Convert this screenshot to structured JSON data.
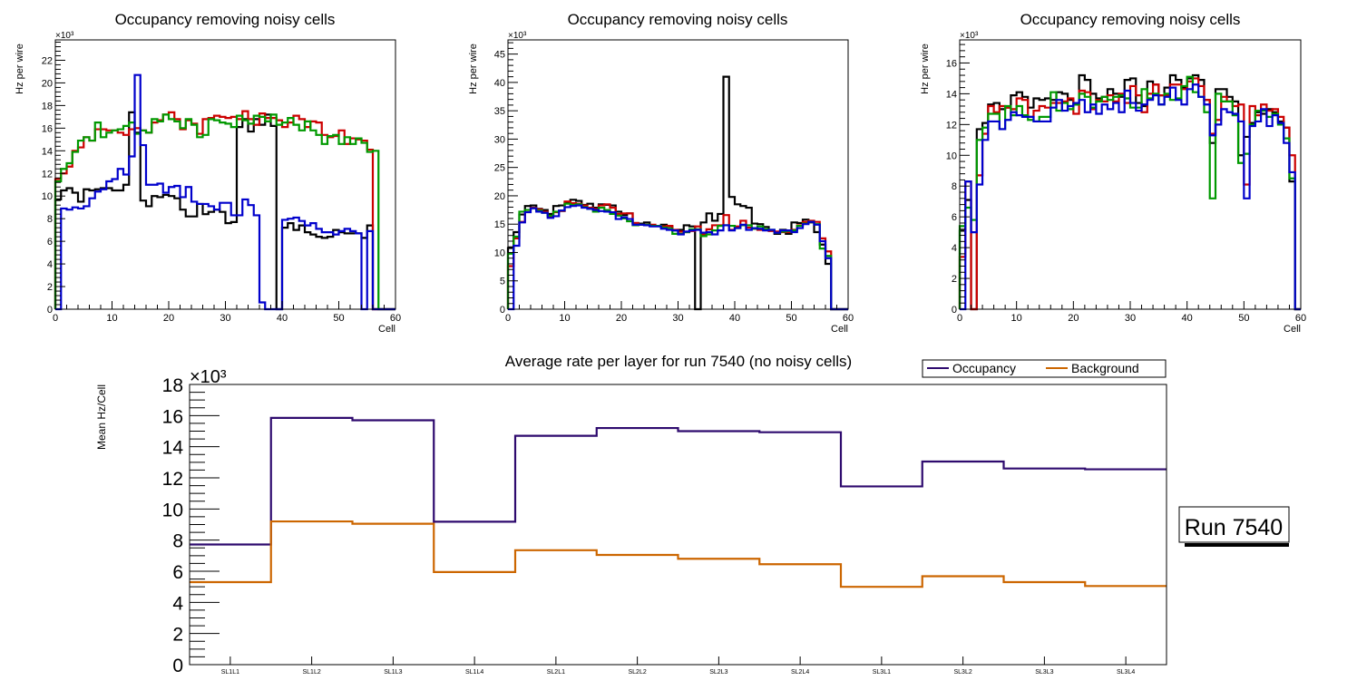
{
  "chart_data": [
    {
      "type": "line",
      "subtype": "step-histogram",
      "title": "Occupancy removing noisy cells",
      "xlabel": "Cell",
      "ylabel": "Hz per wire",
      "y_multiplier_label": "×10³",
      "xlim": [
        0,
        60
      ],
      "ylim": [
        0,
        23.8
      ],
      "x_ticks": [
        0,
        10,
        20,
        30,
        40,
        50,
        60
      ],
      "y_ticks": [
        0,
        2,
        4,
        6,
        8,
        10,
        12,
        14,
        16,
        18,
        20,
        22
      ],
      "grid": false,
      "series": [
        {
          "name": "layer-black",
          "color": "#000000",
          "values": [
            9.7,
            10.5,
            10.7,
            10.3,
            9.5,
            10.6,
            10.5,
            10.6,
            10.7,
            10.7,
            10.5,
            10.5,
            11.0,
            17.4,
            15.6,
            9.6,
            9.1,
            10.0,
            9.9,
            10.1,
            10.0,
            9.8,
            8.8,
            8.2,
            8.2,
            9.3,
            8.4,
            8.6,
            8.8,
            8.6,
            7.6,
            7.7,
            16.1,
            16.8,
            15.7,
            16.8,
            16.3,
            17.2,
            16.2,
            0,
            7.2,
            7.6,
            7.0,
            7.4,
            6.8,
            6.6,
            6.4,
            6.3,
            6.4,
            7.0,
            6.8,
            6.7,
            6.7,
            6.7,
            6.3,
            7.4,
            0,
            0,
            0,
            0
          ]
        },
        {
          "name": "layer-red",
          "color": "#cc0000",
          "values": [
            11.5,
            12.0,
            12.6,
            14.0,
            14.3,
            15.2,
            14.9,
            15.9,
            15.9,
            15.8,
            15.8,
            15.6,
            15.4,
            15.9,
            16.0,
            15.8,
            15.6,
            16.5,
            16.7,
            17.2,
            17.4,
            16.8,
            15.9,
            16.7,
            16.4,
            15.5,
            16.8,
            16.9,
            17.1,
            17.0,
            16.9,
            17.0,
            16.8,
            17.5,
            16.8,
            16.3,
            17.3,
            16.9,
            16.9,
            16.7,
            16.1,
            16.5,
            17.1,
            16.8,
            16.1,
            16.6,
            16.5,
            15.4,
            15.2,
            15.3,
            15.8,
            14.6,
            15.1,
            15.0,
            14.9,
            14.1,
            0,
            0,
            0,
            0
          ]
        },
        {
          "name": "layer-green",
          "color": "#009900",
          "values": [
            11.3,
            12.4,
            12.9,
            13.9,
            14.9,
            15.2,
            14.9,
            16.5,
            15.2,
            15.6,
            15.8,
            15.9,
            16.2,
            16.5,
            15.5,
            15.8,
            15.6,
            16.8,
            16.6,
            17.2,
            16.8,
            16.6,
            16.0,
            16.8,
            16.3,
            15.2,
            15.4,
            16.8,
            16.7,
            16.5,
            16.4,
            16.1,
            17.1,
            16.7,
            16.4,
            17.1,
            17.0,
            16.6,
            17.2,
            16.3,
            16.5,
            16.9,
            16.3,
            15.8,
            16.6,
            15.8,
            15.4,
            14.6,
            15.3,
            15.4,
            14.6,
            15.2,
            14.6,
            15.1,
            14.7,
            13.9,
            14.0,
            0,
            0,
            0
          ]
        },
        {
          "name": "layer-blue",
          "color": "#0000cc",
          "values": [
            0,
            8.9,
            8.8,
            9.0,
            8.9,
            9.1,
            9.8,
            10.4,
            10.6,
            11.3,
            11.5,
            12.4,
            11.9,
            13.5,
            20.7,
            14.5,
            11.0,
            11.0,
            11.1,
            10.3,
            10.8,
            10.9,
            9.9,
            10.8,
            9.5,
            9.3,
            9.3,
            9.1,
            8.8,
            9.4,
            9.4,
            8.3,
            8.3,
            9.7,
            9.2,
            8.3,
            0.6,
            0,
            0,
            0,
            7.9,
            8.0,
            8.1,
            7.8,
            7.4,
            7.6,
            7.1,
            6.8,
            6.8,
            6.6,
            6.9,
            7.1,
            6.9,
            6.7,
            0,
            6.9,
            0,
            0,
            0,
            0
          ]
        }
      ]
    },
    {
      "type": "line",
      "subtype": "step-histogram",
      "title": "Occupancy removing noisy cells",
      "xlabel": "Cell",
      "ylabel": "Hz per wire",
      "y_multiplier_label": "×10³",
      "xlim": [
        0,
        60
      ],
      "ylim": [
        0,
        47.5
      ],
      "x_ticks": [
        0,
        10,
        20,
        30,
        40,
        50,
        60
      ],
      "y_ticks": [
        0,
        5,
        10,
        15,
        20,
        25,
        30,
        35,
        40,
        45
      ],
      "grid": false,
      "series": [
        {
          "name": "layer-black",
          "color": "#000000",
          "values": [
            10.8,
            13.6,
            16.7,
            18.2,
            18.3,
            17.7,
            17.5,
            16.8,
            18.2,
            18.3,
            18.8,
            19.3,
            19.1,
            18.4,
            18.6,
            17.9,
            18.5,
            18.4,
            18.3,
            17.2,
            16.6,
            16.9,
            15.2,
            15.1,
            15.3,
            14.7,
            14.7,
            14.9,
            14.6,
            13.9,
            14.0,
            14.8,
            14.6,
            0,
            15.3,
            16.9,
            15.6,
            16.8,
            41.0,
            19.8,
            18.5,
            18.2,
            17.9,
            15.1,
            15.0,
            14.5,
            13.9,
            13.3,
            14.0,
            13.3,
            15.3,
            15.2,
            15.8,
            15.3,
            13.6,
            11.4,
            8.0,
            0,
            0,
            0
          ]
        },
        {
          "name": "layer-red",
          "color": "#cc0000",
          "values": [
            7.6,
            12.5,
            15.4,
            17.5,
            17.9,
            17.6,
            17.2,
            16.4,
            17.1,
            17.3,
            19.0,
            18.7,
            18.6,
            18.3,
            17.9,
            17.7,
            18.3,
            18.5,
            17.9,
            16.8,
            16.9,
            16.9,
            15.2,
            14.9,
            14.9,
            14.9,
            14.7,
            14.6,
            14.7,
            14.0,
            13.7,
            13.6,
            13.8,
            14.6,
            13.2,
            14.1,
            14.8,
            14.8,
            16.6,
            14.0,
            14.6,
            15.6,
            14.4,
            14.2,
            14.0,
            14.0,
            13.8,
            13.7,
            13.6,
            13.6,
            14.0,
            14.8,
            15.4,
            15.6,
            15.4,
            12.5,
            10.2,
            0,
            0,
            0
          ]
        },
        {
          "name": "layer-green",
          "color": "#009900",
          "values": [
            9.8,
            12.8,
            17.2,
            17.5,
            17.8,
            17.4,
            17.0,
            16.5,
            17.2,
            17.4,
            18.6,
            18.4,
            18.5,
            18.0,
            17.7,
            17.2,
            17.9,
            17.5,
            16.8,
            16.5,
            16.0,
            15.5,
            14.8,
            14.9,
            14.9,
            14.7,
            14.7,
            14.4,
            14.2,
            13.3,
            13.3,
            13.6,
            14.1,
            14.1,
            12.9,
            13.2,
            13.9,
            14.7,
            14.8,
            14.7,
            14.3,
            14.8,
            14.8,
            14.2,
            14.6,
            14.1,
            14.0,
            13.5,
            13.7,
            13.8,
            13.9,
            14.7,
            15.1,
            15.4,
            15.0,
            10.7,
            9.4,
            0,
            0,
            0
          ]
        },
        {
          "name": "layer-blue",
          "color": "#0000cc",
          "values": [
            0,
            11.2,
            15.3,
            17.1,
            17.8,
            17.2,
            17.0,
            16.1,
            16.4,
            17.4,
            18.0,
            18.2,
            18.3,
            17.9,
            17.7,
            17.5,
            17.3,
            17.2,
            17.1,
            15.9,
            16.2,
            15.9,
            14.9,
            14.9,
            14.8,
            14.6,
            14.6,
            14.2,
            14.0,
            13.9,
            13.2,
            13.7,
            13.9,
            14.0,
            13.5,
            13.6,
            13.2,
            13.9,
            14.8,
            13.9,
            14.3,
            14.9,
            14.0,
            14.3,
            14.2,
            13.9,
            14.0,
            13.5,
            13.9,
            13.9,
            13.6,
            14.3,
            15.0,
            15.4,
            14.9,
            12.0,
            9.0,
            0,
            0,
            0
          ]
        }
      ]
    },
    {
      "type": "line",
      "subtype": "step-histogram",
      "title": "Occupancy removing noisy cells",
      "xlabel": "Cell",
      "ylabel": "Hz per wire",
      "y_multiplier_label": "×10³",
      "xlim": [
        0,
        60
      ],
      "ylim": [
        0,
        17.5
      ],
      "x_ticks": [
        0,
        10,
        20,
        30,
        40,
        50,
        60
      ],
      "y_ticks": [
        0,
        2,
        4,
        6,
        8,
        10,
        12,
        14,
        16
      ],
      "grid": false,
      "series": [
        {
          "name": "layer-black",
          "color": "#000000",
          "values": [
            5.1,
            7.1,
            0,
            11.7,
            12.1,
            13.3,
            13.4,
            13.0,
            13.1,
            13.9,
            14.1,
            13.8,
            13.1,
            13.7,
            13.6,
            13.7,
            13.6,
            14.1,
            14.0,
            13.6,
            13.3,
            15.2,
            14.9,
            14.0,
            13.7,
            13.8,
            14.3,
            14.0,
            13.8,
            14.9,
            15.0,
            13.4,
            13.2,
            14.8,
            14.6,
            13.9,
            14.4,
            15.2,
            14.9,
            14.4,
            15.0,
            15.2,
            14.9,
            13.6,
            10.8,
            14.3,
            14.3,
            13.8,
            13.5,
            10.0,
            11.2,
            12.1,
            12.8,
            12.7,
            13.0,
            12.8,
            12.2,
            11.8,
            8.3,
            0
          ]
        },
        {
          "name": "layer-red",
          "color": "#cc0000",
          "values": [
            3.4,
            8.3,
            0,
            8.7,
            11.4,
            13.2,
            12.8,
            13.2,
            13.1,
            13.0,
            13.7,
            13.6,
            12.5,
            12.9,
            13.2,
            13.1,
            13.4,
            13.4,
            13.5,
            13.7,
            12.7,
            14.2,
            14.1,
            13.0,
            13.6,
            13.5,
            13.9,
            13.5,
            14.0,
            13.4,
            14.5,
            13.9,
            12.8,
            14.0,
            14.6,
            13.9,
            13.9,
            14.6,
            14.6,
            14.3,
            14.8,
            15.0,
            14.5,
            13.6,
            11.4,
            12.3,
            13.8,
            13.5,
            13.2,
            13.3,
            8.1,
            13.2,
            12.6,
            13.3,
            12.9,
            13.0,
            12.5,
            11.8,
            10.0,
            0
          ]
        },
        {
          "name": "layer-green",
          "color": "#009900",
          "values": [
            5.4,
            6.6,
            5.8,
            11.0,
            11.8,
            12.7,
            12.7,
            11.7,
            13.2,
            12.6,
            13.2,
            12.6,
            12.3,
            12.2,
            12.5,
            12.5,
            14.1,
            12.9,
            13.4,
            13.0,
            13.3,
            14.0,
            13.8,
            13.1,
            13.5,
            13.8,
            13.6,
            13.8,
            13.9,
            13.7,
            13.1,
            13.1,
            14.3,
            13.7,
            14.0,
            13.3,
            14.0,
            13.6,
            13.7,
            14.5,
            15.1,
            14.1,
            13.8,
            12.8,
            7.2,
            14.0,
            13.5,
            13.5,
            12.6,
            9.5,
            10.1,
            12.0,
            12.9,
            12.9,
            12.5,
            12.7,
            12.0,
            11.1,
            8.5,
            0
          ]
        },
        {
          "name": "layer-blue",
          "color": "#0000cc",
          "values": [
            0,
            8.3,
            5.0,
            8.1,
            11.0,
            12.2,
            12.2,
            11.7,
            12.3,
            12.8,
            12.6,
            12.5,
            12.5,
            12.2,
            12.2,
            12.2,
            13.1,
            13.6,
            12.9,
            13.2,
            13.4,
            13.6,
            12.8,
            13.3,
            12.7,
            13.3,
            13.0,
            13.4,
            12.8,
            14.2,
            13.4,
            12.9,
            13.3,
            13.6,
            13.9,
            13.3,
            13.8,
            14.4,
            13.6,
            13.3,
            14.3,
            14.6,
            13.8,
            13.3,
            11.3,
            12.0,
            13.0,
            12.8,
            12.7,
            12.2,
            7.2,
            11.9,
            12.2,
            13.0,
            11.9,
            12.6,
            12.1,
            10.8,
            8.9,
            0
          ]
        }
      ]
    },
    {
      "type": "line",
      "subtype": "step-histogram",
      "title": "Average rate per layer for run 7540 (no noisy cells)",
      "xlabel": "",
      "ylabel": "Mean Hz/Cell",
      "y_multiplier_label": "×10³",
      "categories": [
        "SL1L1",
        "SL1L2",
        "SL1L3",
        "SL1L4",
        "SL2L1",
        "SL2L2",
        "SL2L3",
        "SL2L4",
        "SL3L1",
        "SL3L2",
        "SL3L3",
        "SL3L4"
      ],
      "ylim": [
        0,
        18
      ],
      "y_ticks": [
        0,
        2,
        4,
        6,
        8,
        10,
        12,
        14,
        16,
        18
      ],
      "grid": false,
      "legend_position": "top-right",
      "series": [
        {
          "name": "Occupancy",
          "color": "#2e0a6e",
          "values": [
            7.72,
            15.85,
            15.7,
            9.18,
            14.7,
            15.2,
            15.0,
            14.93,
            11.45,
            13.05,
            12.6,
            12.55
          ]
        },
        {
          "name": "Background",
          "color": "#cc6600",
          "values": [
            5.3,
            9.2,
            9.05,
            5.95,
            7.35,
            7.05,
            6.8,
            6.45,
            5.0,
            5.68,
            5.3,
            5.05
          ]
        }
      ]
    }
  ],
  "annotation": {
    "run_label": "Run 7540"
  }
}
